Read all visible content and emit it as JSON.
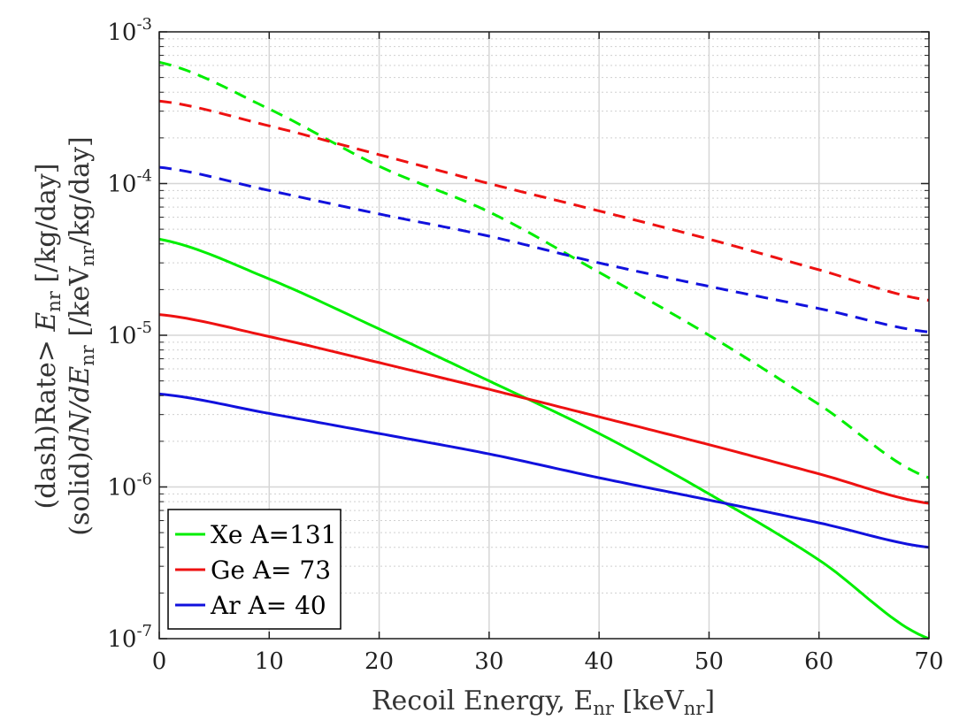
{
  "chart_data": {
    "type": "line",
    "title": "",
    "xlabel": "Recoil Energy, E",
    "xlabel_sub": "nr",
    "xlabel_unit_open": " [keV",
    "xlabel_unit_sub": "nr",
    "xlabel_unit_close": "]",
    "ylabel_line1": {
      "prefix": "(dash)Rate> ",
      "var": "E",
      "sub": "nr",
      "unit": " [/kg/day]"
    },
    "ylabel_line2": {
      "prefix": "(solid)",
      "var": "dN/dE",
      "sub": "nr",
      "unit_open": " [/keV",
      "unit_sub": "nr",
      "unit_close": "/kg/day]"
    },
    "xlim": [
      0,
      70
    ],
    "ylim": [
      1e-07,
      0.001
    ],
    "yscale": "log",
    "grid": true,
    "minor_grid": true,
    "legend_placement": "bottom-left",
    "xticks": [
      0,
      10,
      20,
      30,
      40,
      50,
      60,
      70
    ],
    "xtick_labels": [
      "0",
      "10",
      "20",
      "30",
      "40",
      "50",
      "60",
      "70"
    ],
    "yticks": [
      {
        "value": 1e-07,
        "base": "10",
        "exp": "-7"
      },
      {
        "value": 1e-06,
        "base": "10",
        "exp": "-6"
      },
      {
        "value": 1e-05,
        "base": "10",
        "exp": "-5"
      },
      {
        "value": 0.0001,
        "base": "10",
        "exp": "-4"
      },
      {
        "value": 0.001,
        "base": "10",
        "exp": "-3"
      }
    ],
    "series": [
      {
        "name": "Xe A=131",
        "color": "#00ee00",
        "style": "solid",
        "x": [
          0,
          10,
          20,
          30,
          40,
          50,
          60,
          70
        ],
        "y": [
          4.3e-05,
          2.35e-05,
          1.1e-05,
          5e-06,
          2.25e-06,
          9e-07,
          3.3e-07,
          1e-07
        ]
      },
      {
        "name": "Ge A= 73",
        "color": "#ee1111",
        "style": "solid",
        "x": [
          0,
          10,
          20,
          30,
          40,
          50,
          60,
          70
        ],
        "y": [
          1.37e-05,
          9.8e-06,
          6.6e-06,
          4.4e-06,
          2.9e-06,
          1.9e-06,
          1.22e-06,
          7.8e-07
        ]
      },
      {
        "name": "Ar A= 40",
        "color": "#1111dd",
        "style": "solid",
        "x": [
          0,
          10,
          20,
          30,
          40,
          50,
          60,
          70
        ],
        "y": [
          4.1e-06,
          3.05e-06,
          2.25e-06,
          1.65e-06,
          1.15e-06,
          8.2e-07,
          5.8e-07,
          4e-07
        ]
      },
      {
        "color": "#00ee00",
        "style": "dashed",
        "x": [
          0,
          10,
          20,
          30,
          40,
          50,
          60,
          70
        ],
        "y": [
          0.00063,
          0.00031,
          0.00013,
          6.5e-05,
          2.6e-05,
          1e-05,
          3.5e-06,
          1.15e-06
        ]
      },
      {
        "color": "#ee1111",
        "style": "dashed",
        "x": [
          0,
          10,
          20,
          30,
          40,
          50,
          60,
          70
        ],
        "y": [
          0.00035,
          0.00024,
          0.000155,
          0.0001,
          6.6e-05,
          4.3e-05,
          2.7e-05,
          1.7e-05
        ]
      },
      {
        "color": "#1111dd",
        "style": "dashed",
        "x": [
          0,
          10,
          20,
          30,
          40,
          50,
          60,
          70
        ],
        "y": [
          0.000128,
          9e-05,
          6.3e-05,
          4.5e-05,
          3e-05,
          2.1e-05,
          1.5e-05,
          1.05e-05
        ]
      }
    ]
  }
}
